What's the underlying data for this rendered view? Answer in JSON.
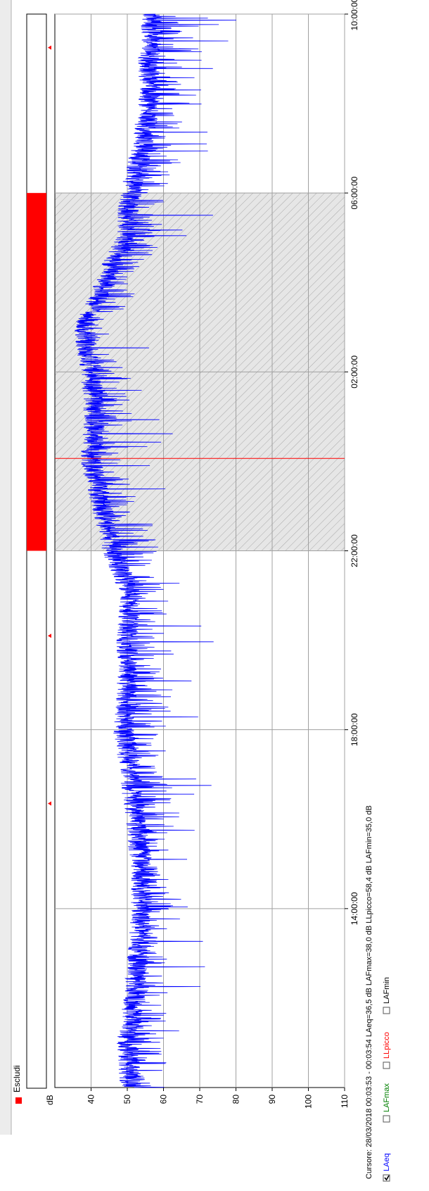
{
  "legend": {
    "escludi_label": "Escludi",
    "escludi_color": "#ff0000"
  },
  "cursor_text": "Cursore: 28/03/2018 00:03:53 - 00:03:54  LAeq=36,5 dB  LAFmax=38,0 dB  LLpicco=58,4 dB  LAFmin=35,0 dB",
  "series_toggles": [
    {
      "label": "LAeq",
      "checked": true,
      "color": "#0000ff"
    },
    {
      "label": "LAFmax",
      "checked": false,
      "color": "#008000"
    },
    {
      "label": "LLpicco",
      "checked": false,
      "color": "#ff0000"
    },
    {
      "label": "LAFmin",
      "checked": false,
      "color": "#000000"
    }
  ],
  "chart_data": {
    "type": "line",
    "title": "",
    "xlabel": "",
    "ylabel": "dB",
    "ylim": [
      30,
      110
    ],
    "yticks": [
      40,
      50,
      60,
      70,
      80,
      90,
      100,
      110
    ],
    "y_tick_labels": [
      "40",
      "50",
      "60",
      "70",
      "80",
      "90",
      "100",
      "110"
    ],
    "xlim_hours": [
      10.0,
      34.0
    ],
    "xticks_hours": [
      14,
      18,
      22,
      26,
      30,
      34
    ],
    "x_tick_labels": [
      "14:00:00",
      "18:00:00",
      "22:00:00",
      "02:00:00",
      "06:00:00",
      "10:00:00"
    ],
    "grid": true,
    "colors": {
      "series": "#0000ff",
      "cursor": "#ff0000",
      "exclusion": "#ff0000",
      "grid": "#a0a0a0"
    },
    "excluded_interval_hours": [
      22.0,
      30.0
    ],
    "cursor_hour": 24.065,
    "event_markers_hours": [
      16.35,
      20.1,
      33.25
    ],
    "series": [
      {
        "name": "LAeq",
        "x_hours": [
          10.0,
          11.0,
          12.0,
          13.0,
          14.0,
          15.0,
          16.0,
          17.0,
          18.0,
          19.0,
          20.0,
          21.0,
          22.0,
          23.0,
          24.0,
          25.0,
          26.0,
          26.5,
          27.0,
          27.5,
          28.0,
          28.5,
          29.0,
          29.5,
          30.0,
          31.0,
          32.0,
          33.0,
          34.0
        ],
        "base_db": [
          51,
          50,
          52,
          53,
          54,
          54,
          52,
          51,
          49,
          50,
          50,
          51,
          46,
          43,
          40,
          41,
          40,
          39,
          38,
          41,
          44,
          46,
          50,
          50,
          51,
          54,
          56,
          56,
          57
        ],
        "peak_db": [
          62,
          60,
          62,
          61,
          63,
          62,
          63,
          62,
          61,
          64,
          63,
          62,
          60,
          56,
          50,
          52,
          51,
          46,
          45,
          50,
          55,
          58,
          60,
          63,
          62,
          66,
          70,
          72,
          70
        ]
      }
    ]
  }
}
